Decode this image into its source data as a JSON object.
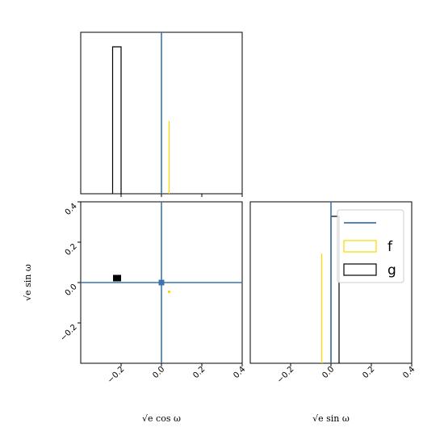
{
  "chart_data": {
    "type": "corner",
    "axes": {
      "x": {
        "label": "√e cos ω",
        "range": [
          -0.4,
          0.4
        ],
        "ticks": [
          -0.2,
          0.0,
          0.2,
          0.4
        ],
        "tick_labels": [
          "−0.2",
          "0.0",
          "0.2",
          "0.4"
        ]
      },
      "y": {
        "label": "√e sin ω",
        "range": [
          -0.4,
          0.4
        ],
        "ticks": [
          -0.2,
          0.0,
          0.2,
          0.4
        ],
        "tick_labels": [
          "−0.2",
          "0.0",
          "0.2",
          "0.4"
        ]
      }
    },
    "truth": {
      "x": 0.0,
      "y": 0.0,
      "color": "#3b75af"
    },
    "series": [
      {
        "name": "f",
        "color": "#ffd700",
        "hist_x": {
          "bin": [
            0.036,
            0.04
          ],
          "height_frac": 0.45
        },
        "hist_y": {
          "bin": [
            -0.048,
            -0.044
          ],
          "height_frac": 0.68
        },
        "points": [
          {
            "x": 0.038,
            "y": -0.046
          }
        ]
      },
      {
        "name": "g",
        "color": "#000000",
        "hist_x": {
          "bin": [
            -0.242,
            -0.2
          ],
          "height_frac": 0.91
        },
        "hist_y": {
          "bin": [
            0.0,
            0.04
          ],
          "height_frac": 0.91
        },
        "points": [
          {
            "x": -0.22,
            "y": 0.022
          }
        ],
        "central_marker": {
          "x": 0.0,
          "y": 0.0
        }
      }
    ],
    "legend": {
      "location": "right-top",
      "entries": [
        {
          "type": "line",
          "label": "",
          "color": "#3b75af"
        },
        {
          "type": "patch",
          "label": "f",
          "color": "#ffd700"
        },
        {
          "type": "patch",
          "label": "g",
          "color": "#000000"
        }
      ]
    }
  }
}
